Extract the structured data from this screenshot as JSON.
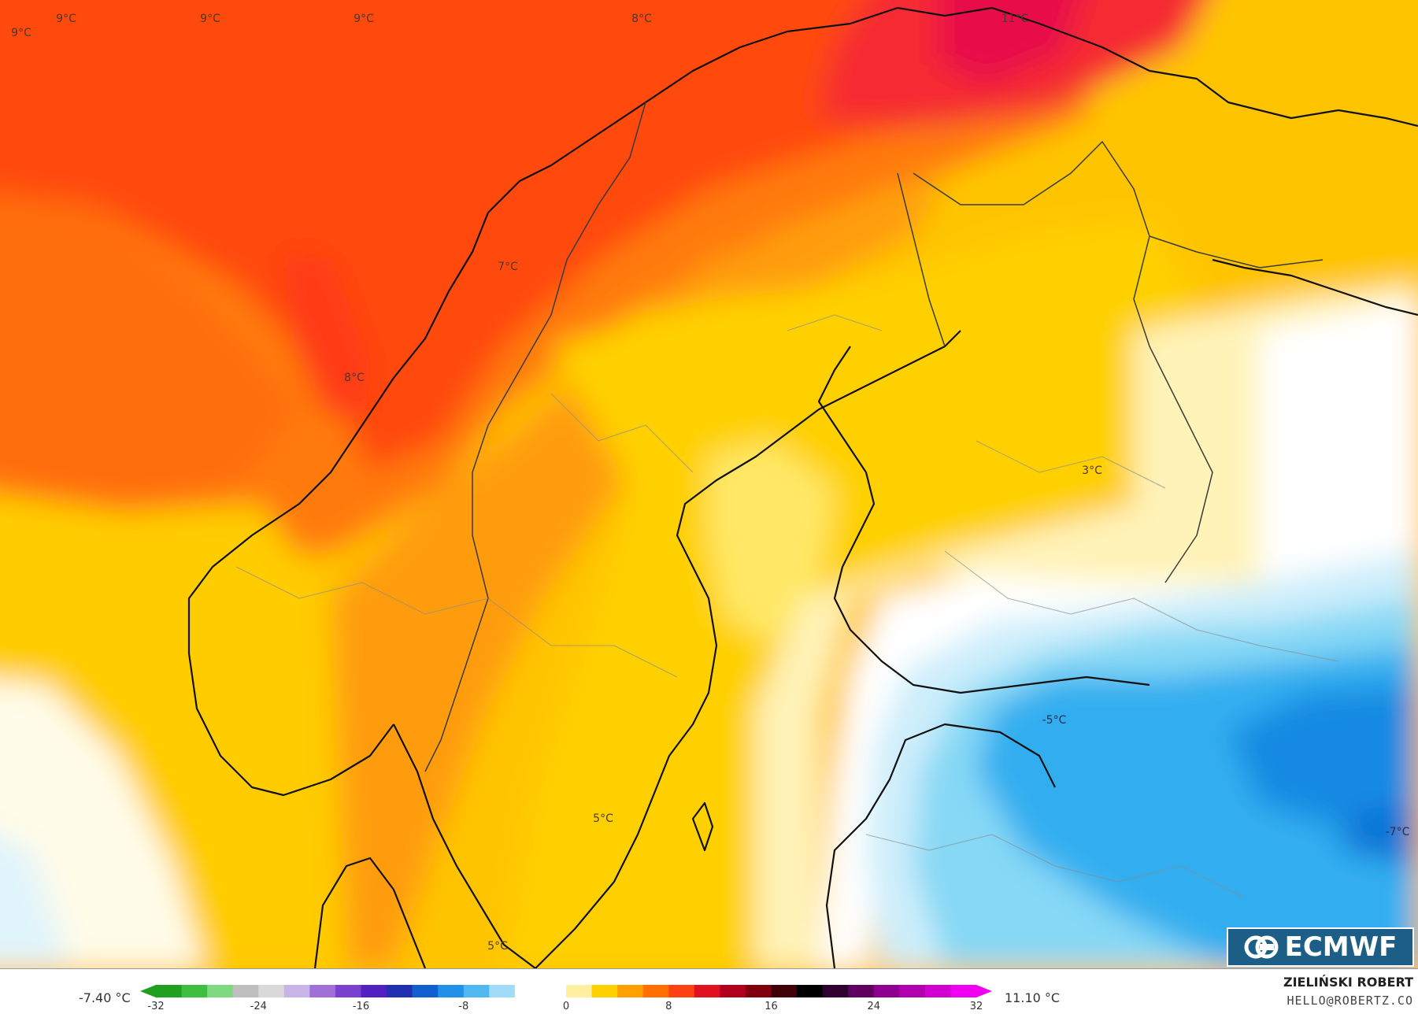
{
  "map": {
    "temperature_labels": [
      {
        "id": "t1",
        "text": "9°C"
      },
      {
        "id": "t2",
        "text": "9°C"
      },
      {
        "id": "t3",
        "text": "9°C"
      },
      {
        "id": "t4",
        "text": "9°C"
      },
      {
        "id": "t5",
        "text": "8°C"
      },
      {
        "id": "t6",
        "text": "11°C"
      },
      {
        "id": "t7",
        "text": "7°C"
      },
      {
        "id": "t8",
        "text": "8°C"
      },
      {
        "id": "t9",
        "text": "3°C"
      },
      {
        "id": "t10",
        "text": "-5°C"
      },
      {
        "id": "t11",
        "text": "5°C"
      },
      {
        "id": "t12",
        "text": "-7°C"
      },
      {
        "id": "t13",
        "text": "5°C"
      }
    ],
    "palette": {
      "warm_red": "#e8203a",
      "red_orange": "#ff4a10",
      "orange": "#ff7a0a",
      "amber": "#ffa008",
      "yellow": "#ffd200",
      "light_yellow": "#ffe866",
      "pale": "#fff6c8",
      "white": "#ffffff",
      "pale_blue": "#d8f2fc",
      "light_blue": "#8edcf6",
      "blue": "#2aaaee",
      "deep_blue": "#0e86e0"
    }
  },
  "logo": {
    "text": "ECMWF",
    "icon": "ecmwf-logo-icon"
  },
  "legend": {
    "min_label": "-7.40 °C",
    "max_label": "11.10 °C",
    "ticks": [
      "-32",
      "-24",
      "-16",
      "-8",
      "0",
      "8",
      "16",
      "24",
      "32"
    ],
    "range": [
      -32,
      32
    ],
    "colors": [
      "#1fa01f",
      "#3fbf3f",
      "#7fd97f",
      "#bfbfbf",
      "#d9d9d9",
      "#c8b4e6",
      "#a070d8",
      "#7a40d0",
      "#5020c0",
      "#2030b0",
      "#1060d0",
      "#2090e8",
      "#50b8f0",
      "#a0dcf8",
      "#ffffff",
      "#ffffff",
      "#fff0a0",
      "#ffd000",
      "#ffa000",
      "#ff7000",
      "#ff4010",
      "#e01020",
      "#b00020",
      "#800010",
      "#400008",
      "#000000",
      "#300030",
      "#600060",
      "#900090",
      "#b000b0",
      "#d000d0",
      "#f000f0"
    ]
  },
  "credits": {
    "author": "ZIELIŃSKI ROBERT",
    "email": "HELLO@ROBERTZ.CO"
  }
}
